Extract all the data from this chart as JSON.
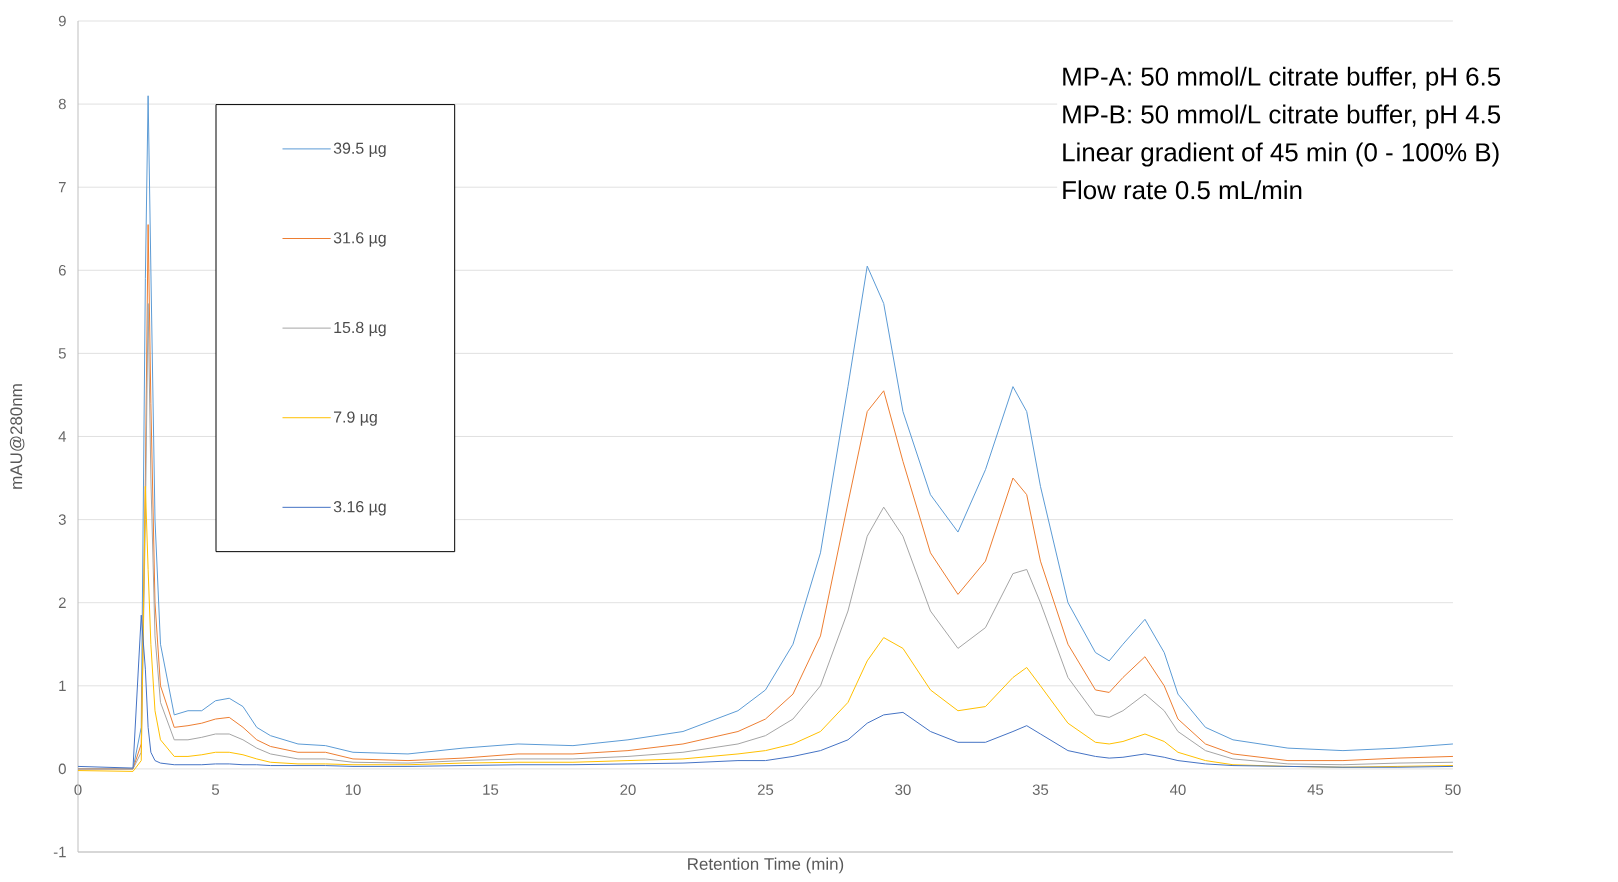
{
  "chart_data": {
    "type": "line",
    "xlabel": "Retention Time (min)",
    "ylabel": "mAU@280nm",
    "annotations": [
      "MP-A: 50 mmol/L citrate buffer, pH 6.5",
      "MP-B: 50 mmol/L citrate buffer, pH 4.5",
      "Linear gradient of 45 min (0 - 100% B)",
      "Flow rate 0.5 mL/min"
    ],
    "x": [
      0,
      2,
      2.3,
      2.45,
      2.55,
      2.65,
      2.8,
      3.0,
      3.5,
      4,
      4.5,
      5,
      5.5,
      6,
      6.5,
      7,
      8,
      9,
      10,
      12,
      14,
      16,
      18,
      20,
      22,
      24,
      25,
      26,
      27,
      28,
      28.7,
      29.3,
      30,
      31,
      32,
      33,
      34,
      34.5,
      35,
      36,
      37,
      37.5,
      38,
      38.8,
      39.5,
      40,
      41,
      42,
      44,
      46,
      48,
      50
    ],
    "series": [
      {
        "name": "39.5 µg",
        "color": "#5b9bd5",
        "values": [
          0,
          0,
          0.5,
          5.9,
          8.1,
          6.0,
          3.0,
          1.5,
          0.65,
          0.7,
          0.7,
          0.82,
          0.85,
          0.75,
          0.5,
          0.4,
          0.3,
          0.28,
          0.2,
          0.18,
          0.25,
          0.3,
          0.28,
          0.35,
          0.45,
          0.7,
          0.95,
          1.5,
          2.6,
          4.6,
          6.05,
          5.6,
          4.3,
          3.3,
          2.85,
          3.6,
          4.6,
          4.3,
          3.4,
          2.0,
          1.4,
          1.3,
          1.5,
          1.8,
          1.4,
          0.9,
          0.5,
          0.35,
          0.25,
          0.22,
          0.25,
          0.3
        ]
      },
      {
        "name": "31.6 µg",
        "color": "#ed7d31",
        "values": [
          0,
          0,
          0.3,
          3.5,
          6.55,
          4.4,
          2.0,
          1.0,
          0.5,
          0.52,
          0.55,
          0.6,
          0.62,
          0.5,
          0.35,
          0.27,
          0.2,
          0.2,
          0.12,
          0.1,
          0.13,
          0.18,
          0.18,
          0.22,
          0.3,
          0.45,
          0.6,
          0.9,
          1.6,
          3.2,
          4.3,
          4.55,
          3.7,
          2.6,
          2.1,
          2.5,
          3.5,
          3.3,
          2.5,
          1.5,
          0.95,
          0.92,
          1.1,
          1.35,
          1.0,
          0.6,
          0.3,
          0.18,
          0.1,
          0.1,
          0.13,
          0.15
        ]
      },
      {
        "name": "15.8 µg",
        "color": "#a5a5a5",
        "values": [
          0,
          0,
          0.2,
          3.0,
          5.6,
          3.5,
          1.6,
          0.8,
          0.35,
          0.35,
          0.38,
          0.42,
          0.42,
          0.35,
          0.25,
          0.18,
          0.12,
          0.12,
          0.08,
          0.07,
          0.1,
          0.12,
          0.12,
          0.15,
          0.2,
          0.3,
          0.4,
          0.6,
          1.0,
          1.9,
          2.8,
          3.15,
          2.8,
          1.9,
          1.45,
          1.7,
          2.35,
          2.4,
          2.0,
          1.1,
          0.65,
          0.62,
          0.7,
          0.9,
          0.7,
          0.45,
          0.22,
          0.12,
          0.06,
          0.05,
          0.07,
          0.08
        ]
      },
      {
        "name": "7.9 µg",
        "color": "#ffc000",
        "values": [
          -0.02,
          -0.03,
          0.1,
          3.4,
          2.4,
          1.5,
          0.7,
          0.35,
          0.15,
          0.15,
          0.17,
          0.2,
          0.2,
          0.17,
          0.12,
          0.08,
          0.06,
          0.06,
          0.05,
          0.05,
          0.07,
          0.08,
          0.08,
          0.1,
          0.12,
          0.18,
          0.22,
          0.3,
          0.45,
          0.8,
          1.3,
          1.58,
          1.45,
          0.95,
          0.7,
          0.75,
          1.1,
          1.22,
          1.0,
          0.55,
          0.32,
          0.3,
          0.33,
          0.42,
          0.33,
          0.2,
          0.1,
          0.05,
          0.03,
          0.02,
          0.03,
          0.04
        ]
      },
      {
        "name": "3.16 µg",
        "color": "#4472c4",
        "values": [
          0.03,
          0.01,
          1.85,
          1.2,
          0.5,
          0.2,
          0.1,
          0.07,
          0.05,
          0.05,
          0.05,
          0.06,
          0.06,
          0.05,
          0.05,
          0.04,
          0.04,
          0.04,
          0.03,
          0.03,
          0.04,
          0.05,
          0.05,
          0.06,
          0.07,
          0.1,
          0.1,
          0.15,
          0.22,
          0.35,
          0.55,
          0.65,
          0.68,
          0.45,
          0.32,
          0.32,
          0.45,
          0.52,
          0.42,
          0.22,
          0.15,
          0.13,
          0.14,
          0.18,
          0.14,
          0.1,
          0.06,
          0.04,
          0.03,
          0.02,
          0.02,
          0.03
        ]
      }
    ],
    "xlim": [
      0,
      50
    ],
    "xticks": [
      0,
      5,
      10,
      15,
      20,
      25,
      30,
      35,
      40,
      45,
      50
    ],
    "ylim": [
      -1,
      9
    ],
    "yticks": [
      -1,
      0,
      1,
      2,
      3,
      4,
      5,
      6,
      7,
      8,
      9
    ],
    "grid": "y",
    "legend": "top left",
    "marker": "none",
    "line_style": "solid"
  }
}
